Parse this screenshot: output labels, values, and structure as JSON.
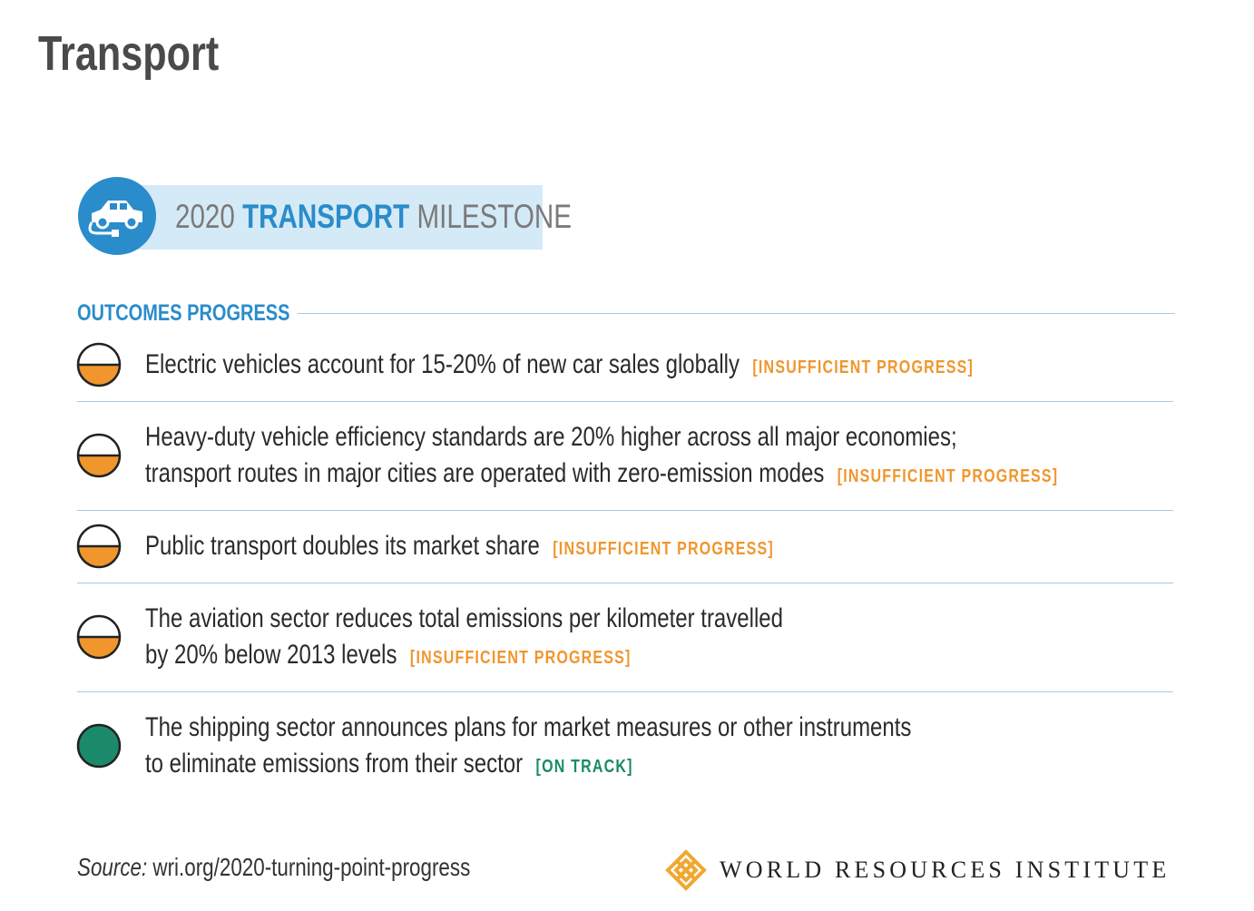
{
  "title": "Transport",
  "milestone": {
    "year": "2020",
    "sector": "TRANSPORT",
    "word": "MILESTONE"
  },
  "section_label": "OUTCOMES PROGRESS",
  "outcomes": [
    {
      "lines": [
        "Electric vehicles account for 15-20% of new car sales globally"
      ],
      "status": "[INSUFFICIENT PROGRESS]",
      "color": "#f0962d",
      "indicator": "half"
    },
    {
      "lines": [
        "Heavy-duty vehicle efficiency standards are 20% higher across all major economies;",
        "transport routes in major cities are operated with zero-emission modes"
      ],
      "status": "[INSUFFICIENT PROGRESS]",
      "color": "#f0962d",
      "indicator": "half"
    },
    {
      "lines": [
        "Public transport doubles its market share"
      ],
      "status": "[INSUFFICIENT PROGRESS]",
      "color": "#f0962d",
      "indicator": "half"
    },
    {
      "lines": [
        "The aviation sector reduces total emissions per kilometer travelled",
        "by 20% below 2013 levels"
      ],
      "status": "[INSUFFICIENT PROGRESS]",
      "color": "#f0962d",
      "indicator": "half"
    },
    {
      "lines": [
        "The shipping sector announces plans for market measures or other instruments",
        "to eliminate emissions from their sector"
      ],
      "status": "[ON TRACK]",
      "color": "#1a8a6a",
      "indicator": "full"
    }
  ],
  "source": {
    "label": "Source:",
    "text": "wri.org/2020-turning-point-progress"
  },
  "logo": "WORLD RESOURCES INSTITUTE"
}
